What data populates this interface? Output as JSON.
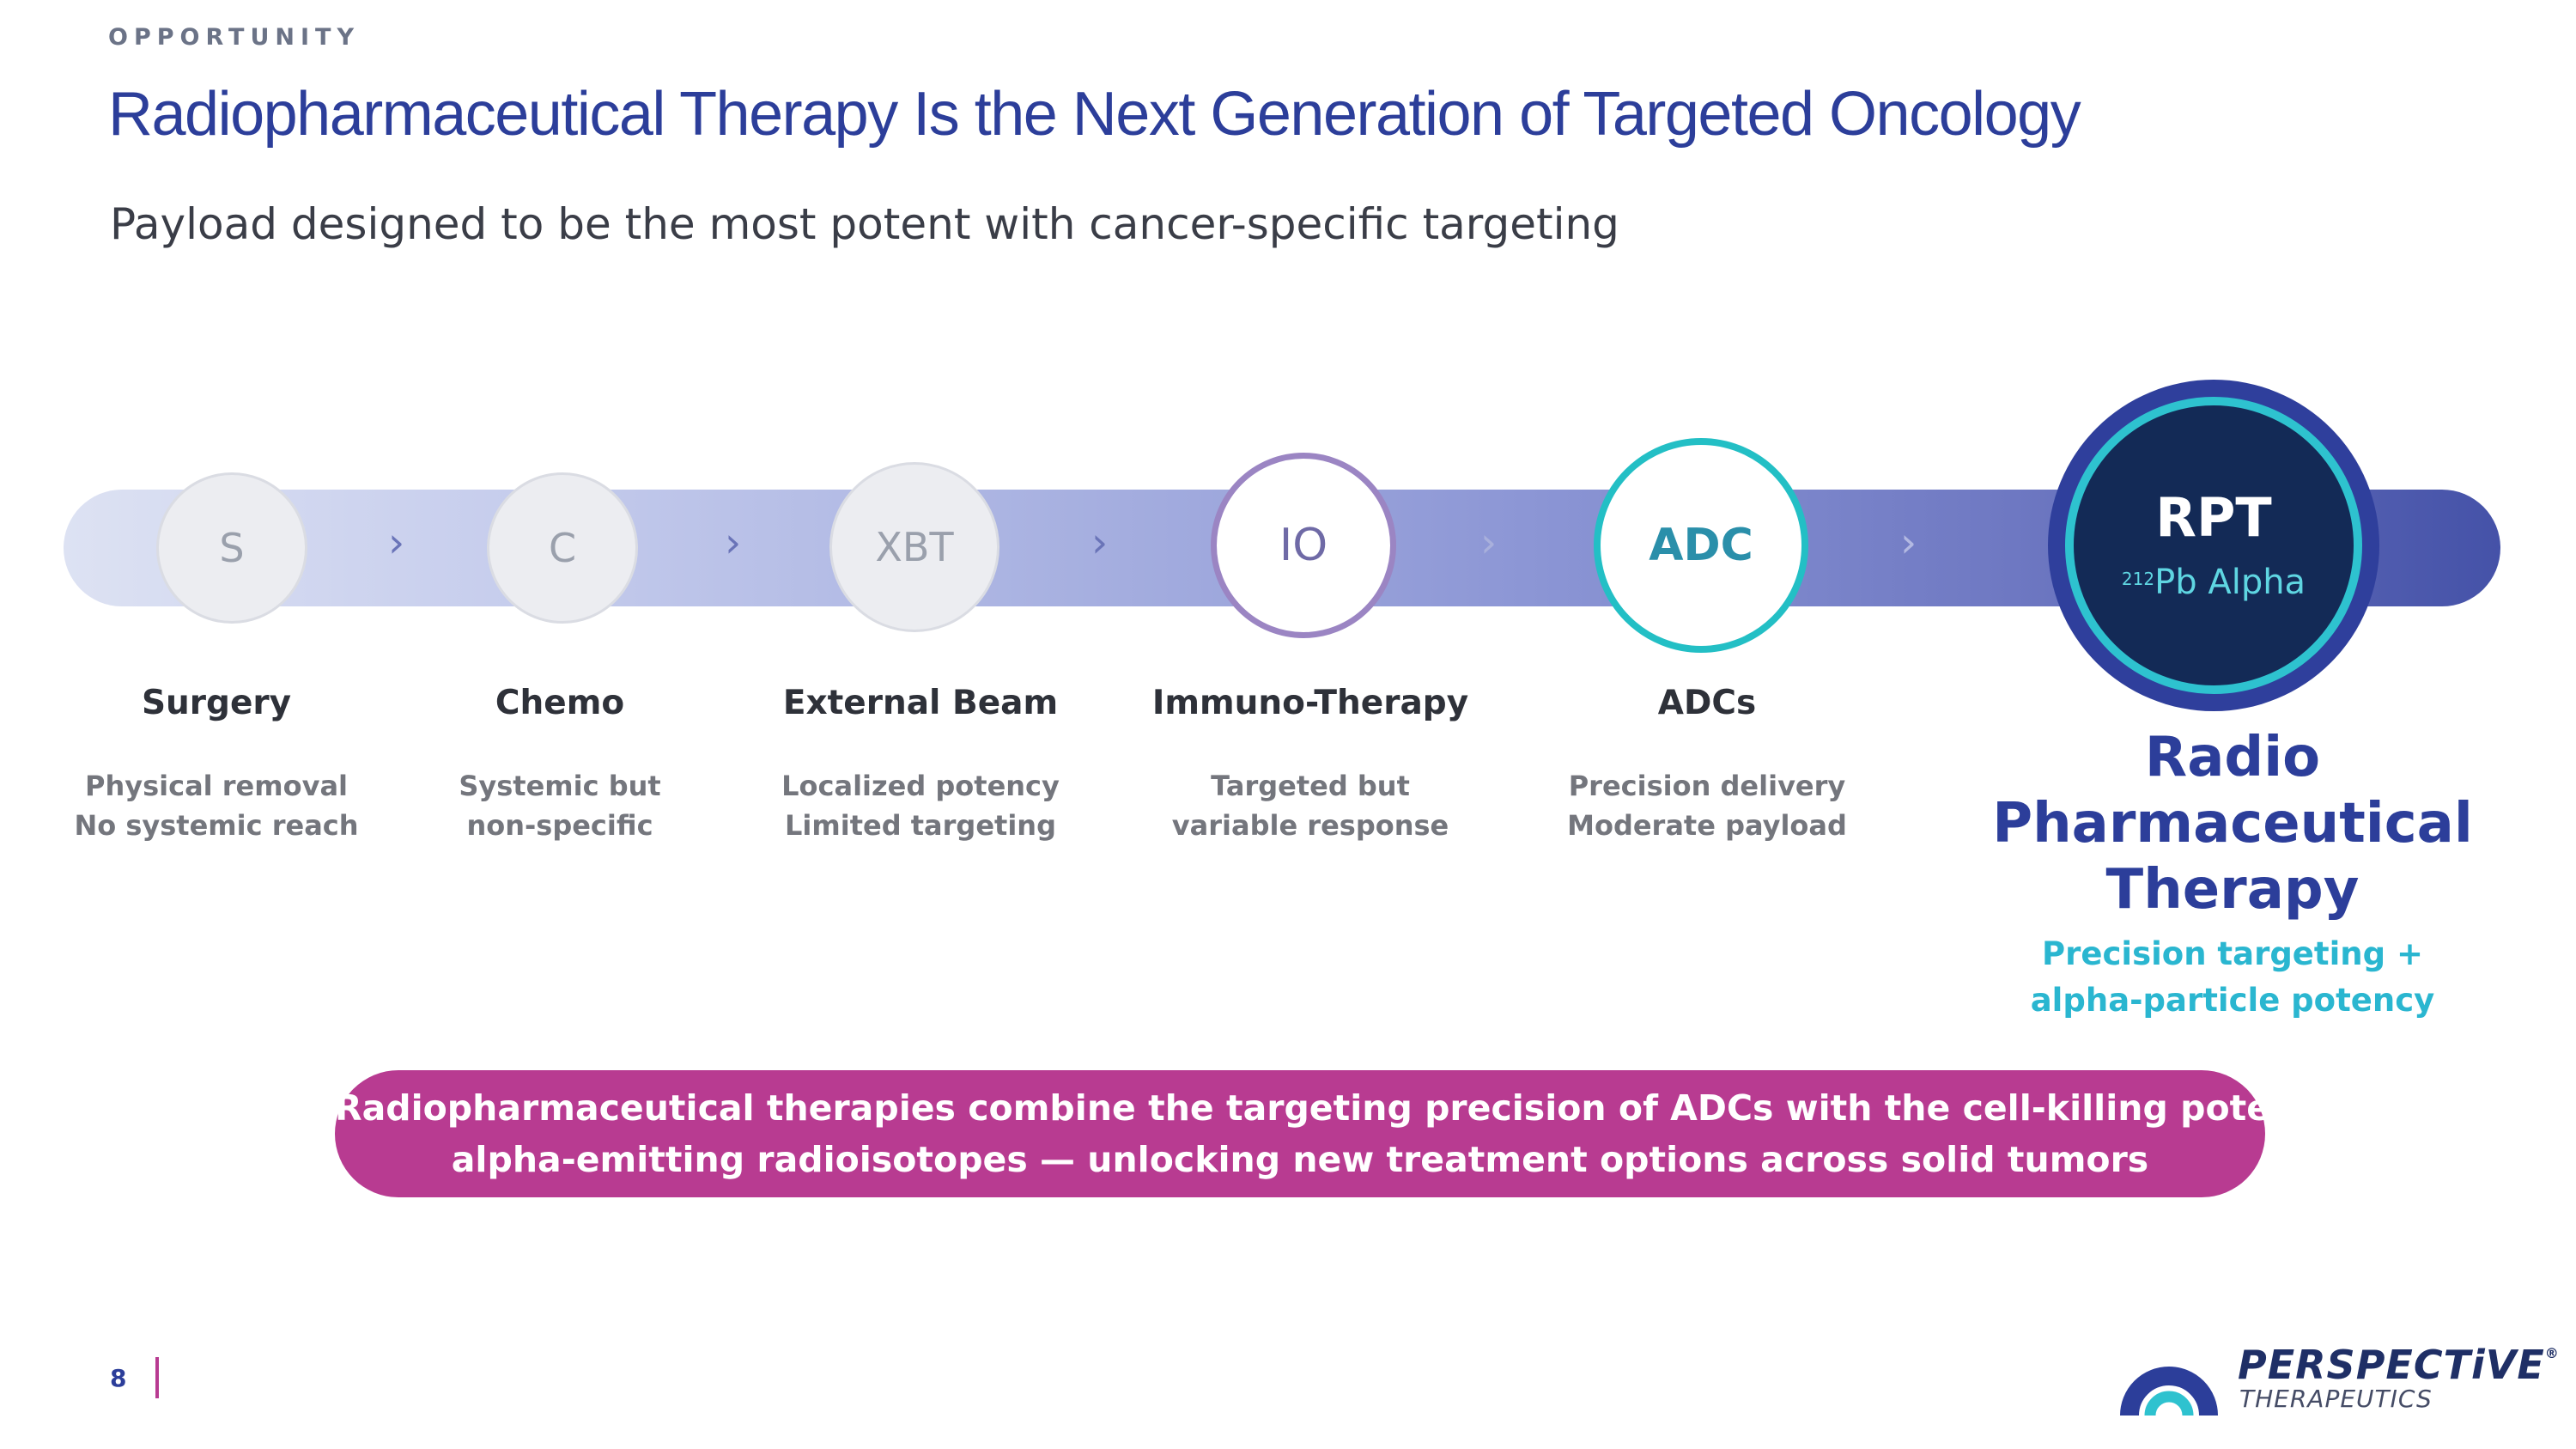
{
  "header": {
    "eyebrow": "OPPORTUNITY",
    "title": "Radiopharmaceutical Therapy Is the Next Generation of Targeted Oncology",
    "subtitle": "Payload designed to be the most potent with cancer-specific targeting"
  },
  "steps": [
    {
      "abbr": "S",
      "title": "Surgery",
      "desc": [
        "Physical removal",
        "No systemic reach"
      ]
    },
    {
      "abbr": "C",
      "title": "Chemo",
      "desc": [
        "Systemic but",
        "non-specific"
      ]
    },
    {
      "abbr": "XBT",
      "title": "External Beam",
      "desc": [
        "Localized potency",
        "Limited targeting"
      ]
    },
    {
      "abbr": "IO",
      "title": "Immuno-Therapy",
      "desc": [
        "Targeted but",
        "variable response"
      ]
    },
    {
      "abbr": "ADC",
      "title": "ADCs",
      "desc": [
        "Precision delivery",
        "Moderate payload"
      ]
    }
  ],
  "arrow_glyph": "›",
  "rpt": {
    "abbr": "RPT",
    "isotope_mass": "212",
    "isotope_label": "Pb Alpha",
    "title_lines": [
      "Radio",
      "Pharmaceutical",
      "Therapy"
    ],
    "desc_lines": [
      "Precision targeting +",
      "alpha-particle potency"
    ]
  },
  "callout": {
    "lines": [
      "Radiopharmaceutical therapies combine the targeting precision of ADCs with the cell-killing potency of",
      "alpha-emitting radioisotopes — unlocking new treatment options across solid tumors"
    ]
  },
  "footer": {
    "page_number": "8",
    "logo_name": "PERSPECTiVE",
    "logo_mark": "®",
    "logo_sub": "THERAPEUTICS",
    "logo_icon": "perspective-logo-icon"
  },
  "colors": {
    "title_blue": "#2c3e9a",
    "accent_magenta": "#b83b91",
    "teal": "#23bfc5",
    "navy": "#132a56"
  }
}
